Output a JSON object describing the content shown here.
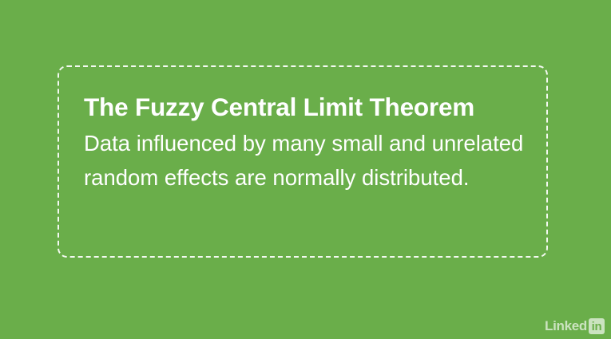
{
  "card": {
    "title": "The Fuzzy Central Limit Theorem",
    "body": "Data influenced by many small and unrelated random effects are normally distributed."
  },
  "watermark": {
    "text": "Linked",
    "badge": "in"
  },
  "colors": {
    "background": "#6aae4a",
    "text": "#ffffff"
  }
}
